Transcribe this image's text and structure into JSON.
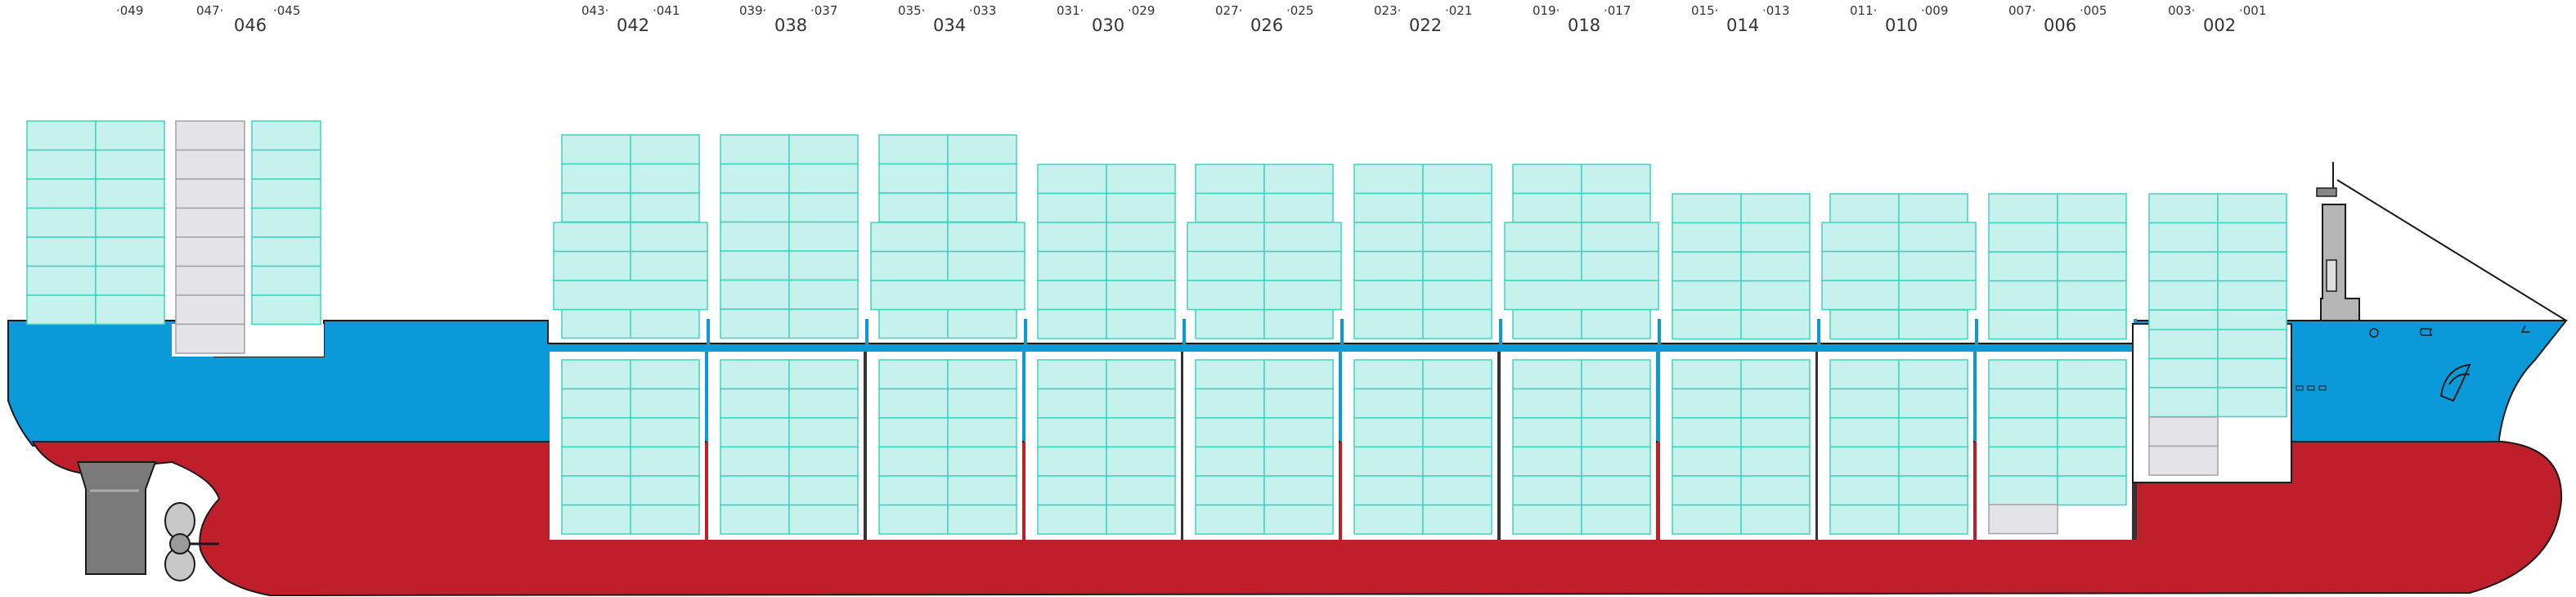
{
  "bays": [
    {
      "bay": "046",
      "fore": "045",
      "aft": "047",
      "aft2": "049"
    },
    {
      "bay": "042",
      "fore": "041",
      "aft": "043"
    },
    {
      "bay": "038",
      "fore": "037",
      "aft": "039"
    },
    {
      "bay": "034",
      "fore": "033",
      "aft": "035"
    },
    {
      "bay": "030",
      "fore": "029",
      "aft": "031"
    },
    {
      "bay": "026",
      "fore": "025",
      "aft": "027"
    },
    {
      "bay": "022",
      "fore": "021",
      "aft": "023"
    },
    {
      "bay": "018",
      "fore": "017",
      "aft": "019"
    },
    {
      "bay": "014",
      "fore": "013",
      "aft": "015"
    },
    {
      "bay": "010",
      "fore": "009",
      "aft": "011"
    },
    {
      "bay": "006",
      "fore": "005",
      "aft": "007"
    },
    {
      "bay": "002",
      "fore": "001",
      "aft": "003"
    }
  ],
  "colors": {
    "hull_blue": "#0a9ad9",
    "hull_red": "#bf1f2a",
    "container_fill": "#c6f1ec",
    "container_stroke": "#40d2bf",
    "empty_fill": "#e4e4e7",
    "empty_stroke": "#a1a1aa",
    "machinery": "#7a7a7a"
  },
  "icons": [
    "lifebuoy-icon",
    "anchor-icon",
    "bulbous-bow-icon"
  ]
}
